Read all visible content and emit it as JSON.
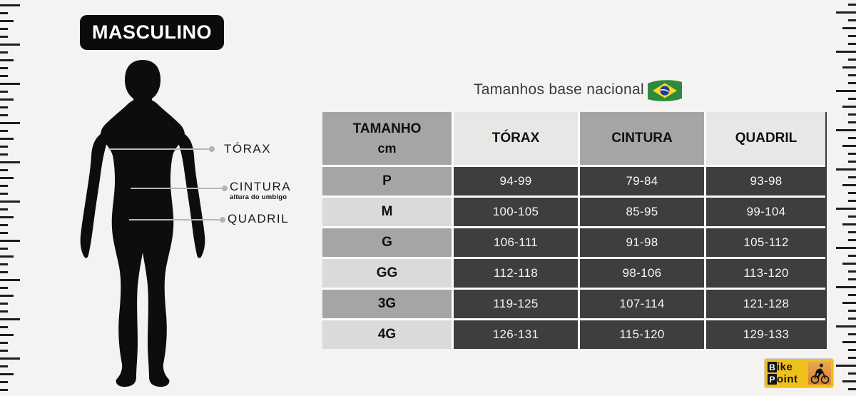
{
  "page": {
    "title_badge": "MASCULINO",
    "subtitle": "Tamanhos base nacional",
    "flag_icon": "brazil-flag"
  },
  "figure": {
    "torax_label": "TÓRAX",
    "cintura_label": "CINTURA",
    "cintura_note": "altura do umbigo",
    "quadril_label": "QUADRIL"
  },
  "chart_data": {
    "type": "table",
    "title": "Tamanhos base nacional",
    "unit": "cm",
    "columns": [
      "TAMANHO cm",
      "TÓRAX",
      "CINTURA",
      "QUADRIL"
    ],
    "rows": [
      {
        "size": "P",
        "torax": "94-99",
        "cintura": "79-84",
        "quadril": "93-98"
      },
      {
        "size": "M",
        "torax": "100-105",
        "cintura": "85-95",
        "quadril": "99-104"
      },
      {
        "size": "G",
        "torax": "106-111",
        "cintura": "91-98",
        "quadril": "105-112"
      },
      {
        "size": "GG",
        "torax": "112-118",
        "cintura": "98-106",
        "quadril": "113-120"
      },
      {
        "size": "3G",
        "torax": "119-125",
        "cintura": "107-114",
        "quadril": "121-128"
      },
      {
        "size": "4G",
        "torax": "126-131",
        "cintura": "115-120",
        "quadril": "129-133"
      }
    ]
  },
  "table": {
    "headers": [
      {
        "label": "TAMANHO",
        "sub": "cm"
      },
      {
        "label": "TÓRAX",
        "sub": ""
      },
      {
        "label": "CINTURA",
        "sub": ""
      },
      {
        "label": "QUADRIL",
        "sub": ""
      }
    ]
  },
  "logo": {
    "name": "Bike Point",
    "line1_initial": "B",
    "line1_rest": "ike",
    "line2_initial": "P",
    "line2_rest": "oint"
  },
  "colors": {
    "background": "#f4f3f1",
    "cell_dark": "#3f3e3e",
    "cell_gray": "#a7a5a4",
    "cell_light_header": "#e8e7e5",
    "cell_light_row": "#dadad8",
    "badge_black": "#0b0b0b",
    "measure_line": "#b8b7b5",
    "logo_yellow": "#efc11b",
    "logo_orange": "#d8832c",
    "flag_green": "#2e8b3c",
    "flag_yellow": "#ffd62e",
    "flag_blue": "#1c3d8f"
  }
}
